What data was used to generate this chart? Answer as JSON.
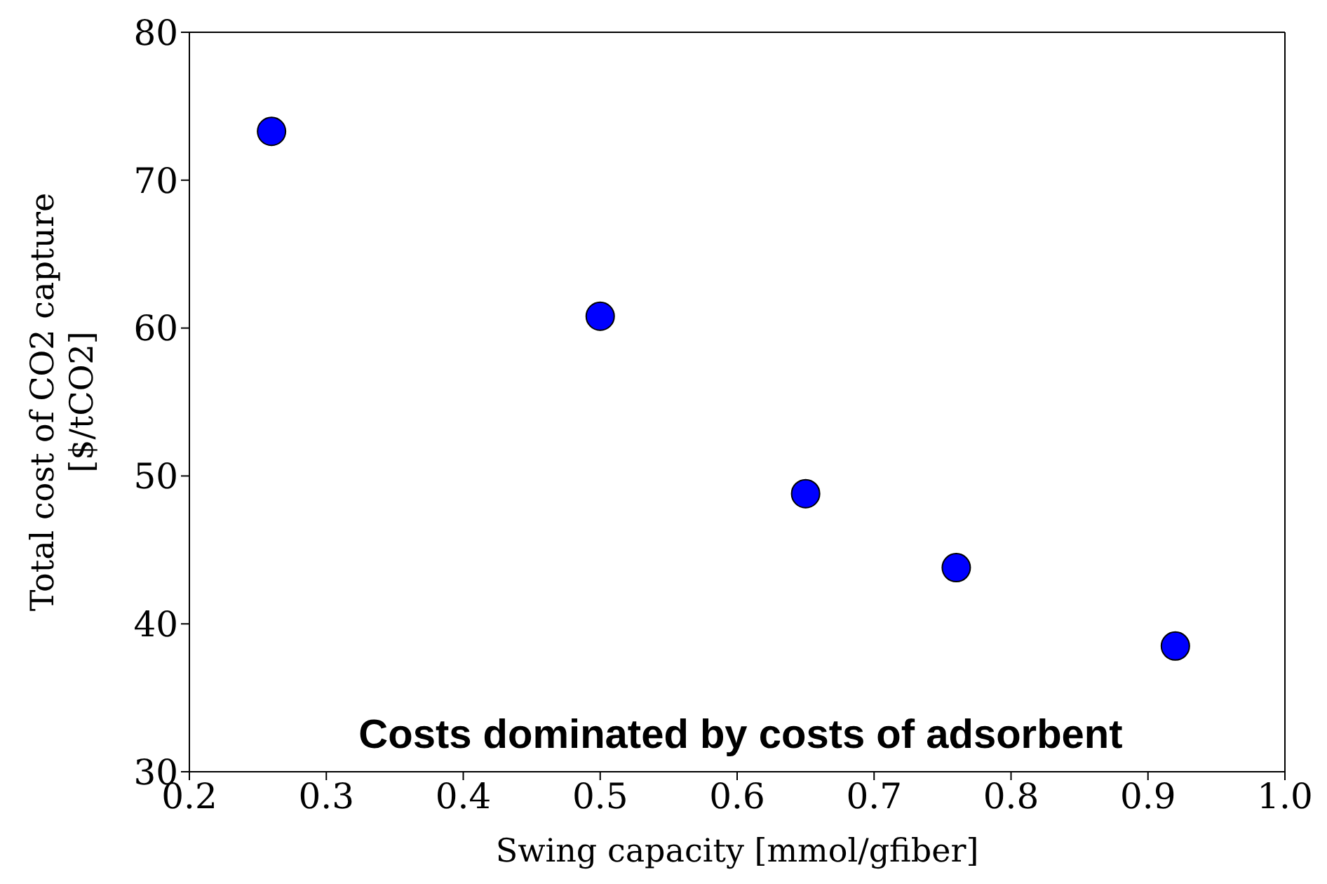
{
  "chart_data": {
    "type": "scatter",
    "xlabel": "Swing capacity [mmol/gfiber]",
    "ylabel": "Total cost of CO2 capture\n[$/tCO2]",
    "annotations": [
      "Costs dominated by costs of adsorbent"
    ],
    "x": [
      0.26,
      0.5,
      0.65,
      0.76,
      0.92
    ],
    "series": [
      {
        "color": "#0000ff",
        "values": [
          73.3,
          60.8,
          48.8,
          43.8,
          38.5
        ]
      }
    ],
    "xlim": [
      0.2,
      1.0
    ],
    "xticks": [
      0.2,
      0.3,
      0.4,
      0.5,
      0.6,
      0.7,
      0.8,
      0.9,
      {
        "value": 1.0,
        "label": "1.0"
      }
    ],
    "ylim": [
      30,
      80
    ],
    "yticks": [
      30,
      40,
      50,
      60,
      70,
      80
    ],
    "marker": "circle",
    "grid": false
  }
}
